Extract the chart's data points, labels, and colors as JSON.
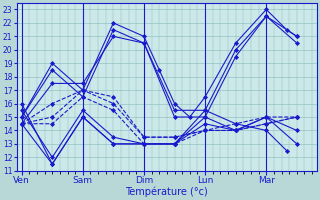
{
  "background_color": "#b8d8d8",
  "plot_bg_color": "#cce8e8",
  "grid_color": "#88bbbb",
  "line_color": "#1a1acc",
  "xlabel": "Température (°c)",
  "ylim": [
    11,
    23.5
  ],
  "yticks": [
    11,
    12,
    13,
    14,
    15,
    16,
    17,
    18,
    19,
    20,
    21,
    22,
    23
  ],
  "day_labels": [
    "Ven",
    "Sam",
    "Dim",
    "Lun",
    "Mar"
  ],
  "day_tick_positions": [
    0,
    24,
    48,
    72,
    96
  ],
  "xlim": [
    -2,
    116
  ],
  "series": [
    {
      "x": [
        0,
        12,
        24,
        36,
        48,
        54,
        60,
        66,
        72,
        84,
        96,
        104,
        108
      ],
      "y": [
        15.0,
        19.0,
        17.0,
        22.0,
        21.0,
        18.5,
        16.0,
        15.0,
        16.5,
        20.5,
        23.0,
        21.5,
        21.0
      ],
      "style": "-",
      "marker": "D"
    },
    {
      "x": [
        0,
        12,
        24,
        36,
        48,
        60,
        72,
        84,
        96,
        108
      ],
      "y": [
        15.0,
        18.5,
        16.5,
        21.5,
        20.5,
        15.5,
        15.5,
        20.0,
        22.5,
        21.0
      ],
      "style": "-",
      "marker": "D"
    },
    {
      "x": [
        0,
        12,
        24,
        36,
        48,
        60,
        72,
        84,
        96,
        108
      ],
      "y": [
        14.5,
        17.5,
        17.5,
        21.0,
        20.5,
        15.0,
        15.0,
        19.5,
        22.5,
        20.5
      ],
      "style": "-",
      "marker": "D"
    },
    {
      "x": [
        0,
        12,
        24,
        36,
        48,
        60,
        72,
        84,
        96,
        108
      ],
      "y": [
        14.5,
        16.0,
        17.0,
        16.5,
        13.5,
        13.5,
        14.0,
        14.5,
        15.0,
        15.0
      ],
      "style": "--",
      "marker": "D"
    },
    {
      "x": [
        0,
        12,
        24,
        36,
        48,
        60,
        72,
        84,
        96,
        108
      ],
      "y": [
        14.5,
        15.0,
        17.0,
        16.0,
        13.5,
        13.5,
        14.0,
        14.0,
        14.5,
        15.0
      ],
      "style": "--",
      "marker": "D"
    },
    {
      "x": [
        0,
        12,
        24,
        36,
        48,
        60,
        72,
        84,
        96,
        108
      ],
      "y": [
        14.5,
        14.5,
        16.5,
        15.5,
        13.0,
        13.0,
        14.0,
        14.0,
        14.5,
        15.0
      ],
      "style": "--",
      "marker": "D"
    },
    {
      "x": [
        0,
        12,
        24,
        36,
        48,
        60,
        72,
        84,
        96,
        108
      ],
      "y": [
        15.5,
        12.0,
        15.5,
        13.5,
        13.0,
        13.0,
        14.5,
        14.0,
        15.0,
        14.0
      ],
      "style": "-",
      "marker": "D"
    },
    {
      "x": [
        0,
        12,
        24,
        36,
        48,
        60,
        72,
        84,
        96,
        108
      ],
      "y": [
        16.0,
        11.5,
        15.0,
        13.0,
        13.0,
        13.0,
        15.0,
        14.0,
        15.0,
        13.0
      ],
      "style": "-",
      "marker": "D"
    },
    {
      "x": [
        0,
        12,
        24,
        36,
        48,
        60,
        72,
        84,
        96,
        104
      ],
      "y": [
        14.5,
        11.5,
        15.0,
        13.0,
        13.0,
        13.0,
        15.5,
        14.5,
        14.0,
        12.5
      ],
      "style": "-",
      "marker": "D"
    }
  ]
}
